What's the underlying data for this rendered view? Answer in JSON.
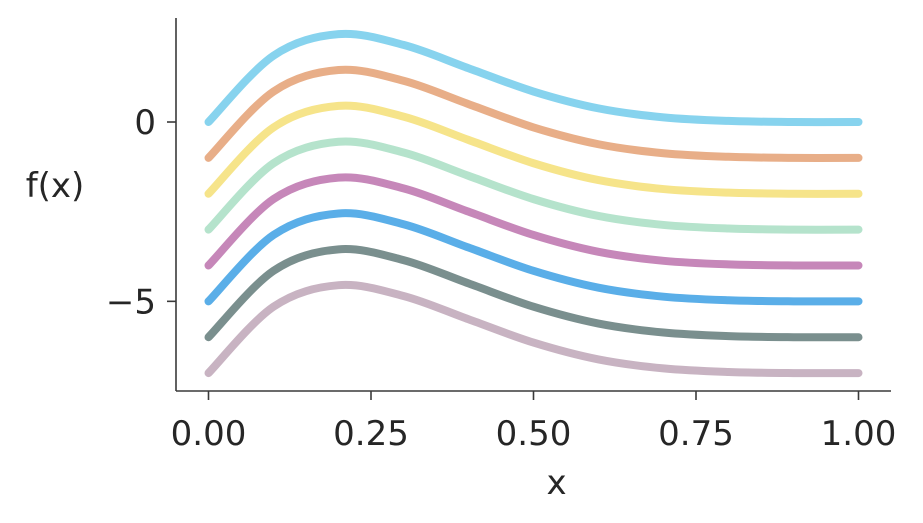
{
  "chart_data": {
    "type": "line",
    "title": "",
    "xlabel": "x",
    "ylabel": "f(x)",
    "xlim": [
      -0.05,
      1.05
    ],
    "ylim": [
      -7.5,
      2.9
    ],
    "xticks": [
      0.0,
      0.25,
      0.5,
      0.75,
      1.0
    ],
    "xtick_labels": [
      "0.00",
      "0.25",
      "0.50",
      "0.75",
      "1.00"
    ],
    "yticks": [
      0,
      -5
    ],
    "ytick_labels": [
      "0",
      "−5"
    ],
    "grid": false,
    "legend": "none",
    "series": [
      {
        "color": "#87d3ee",
        "offset": 0,
        "x": [
          0,
          0.1,
          0.2,
          0.3,
          0.4,
          0.5,
          0.6,
          0.7,
          0.8,
          0.9,
          1.0
        ],
        "y": [
          0,
          1.85,
          2.45,
          2.15,
          1.5,
          0.85,
          0.38,
          0.13,
          0.03,
          0.0,
          0.0
        ]
      },
      {
        "color": "#e8ae88",
        "offset": -1,
        "x": [
          0,
          0.1,
          0.2,
          0.3,
          0.4,
          0.5,
          0.6,
          0.7,
          0.8,
          0.9,
          1.0
        ],
        "y": [
          -1,
          0.85,
          1.45,
          1.15,
          0.5,
          -0.15,
          -0.62,
          -0.87,
          -0.97,
          -1.0,
          -1.0
        ]
      },
      {
        "color": "#f6e48a",
        "offset": -2,
        "x": [
          0,
          0.1,
          0.2,
          0.3,
          0.4,
          0.5,
          0.6,
          0.7,
          0.8,
          0.9,
          1.0
        ],
        "y": [
          -2,
          -0.15,
          0.45,
          0.15,
          -0.5,
          -1.15,
          -1.62,
          -1.87,
          -1.97,
          -2.0,
          -2.0
        ]
      },
      {
        "color": "#b5e3cc",
        "offset": -3,
        "x": [
          0,
          0.1,
          0.2,
          0.3,
          0.4,
          0.5,
          0.6,
          0.7,
          0.8,
          0.9,
          1.0
        ],
        "y": [
          -3,
          -1.15,
          -0.55,
          -0.85,
          -1.5,
          -2.15,
          -2.62,
          -2.87,
          -2.97,
          -3.0,
          -3.0
        ]
      },
      {
        "color": "#c687b9",
        "offset": -4,
        "x": [
          0,
          0.1,
          0.2,
          0.3,
          0.4,
          0.5,
          0.6,
          0.7,
          0.8,
          0.9,
          1.0
        ],
        "y": [
          -4,
          -2.15,
          -1.55,
          -1.85,
          -2.5,
          -3.15,
          -3.62,
          -3.87,
          -3.97,
          -4.0,
          -4.0
        ]
      },
      {
        "color": "#5aaee8",
        "offset": -5,
        "x": [
          0,
          0.1,
          0.2,
          0.3,
          0.4,
          0.5,
          0.6,
          0.7,
          0.8,
          0.9,
          1.0
        ],
        "y": [
          -5,
          -3.15,
          -2.55,
          -2.85,
          -3.5,
          -4.15,
          -4.62,
          -4.87,
          -4.97,
          -5.0,
          -5.0
        ]
      },
      {
        "color": "#7a8f8e",
        "offset": -6,
        "x": [
          0,
          0.1,
          0.2,
          0.3,
          0.4,
          0.5,
          0.6,
          0.7,
          0.8,
          0.9,
          1.0
        ],
        "y": [
          -6,
          -4.15,
          -3.55,
          -3.85,
          -4.5,
          -5.15,
          -5.62,
          -5.87,
          -5.97,
          -6.0,
          -6.0
        ]
      },
      {
        "color": "#c8b3c2",
        "offset": -7,
        "x": [
          0,
          0.1,
          0.2,
          0.3,
          0.4,
          0.5,
          0.6,
          0.7,
          0.8,
          0.9,
          1.0
        ],
        "y": [
          -7,
          -5.15,
          -4.55,
          -4.85,
          -5.5,
          -6.15,
          -6.62,
          -6.87,
          -6.97,
          -7.0,
          -7.0
        ]
      }
    ]
  }
}
